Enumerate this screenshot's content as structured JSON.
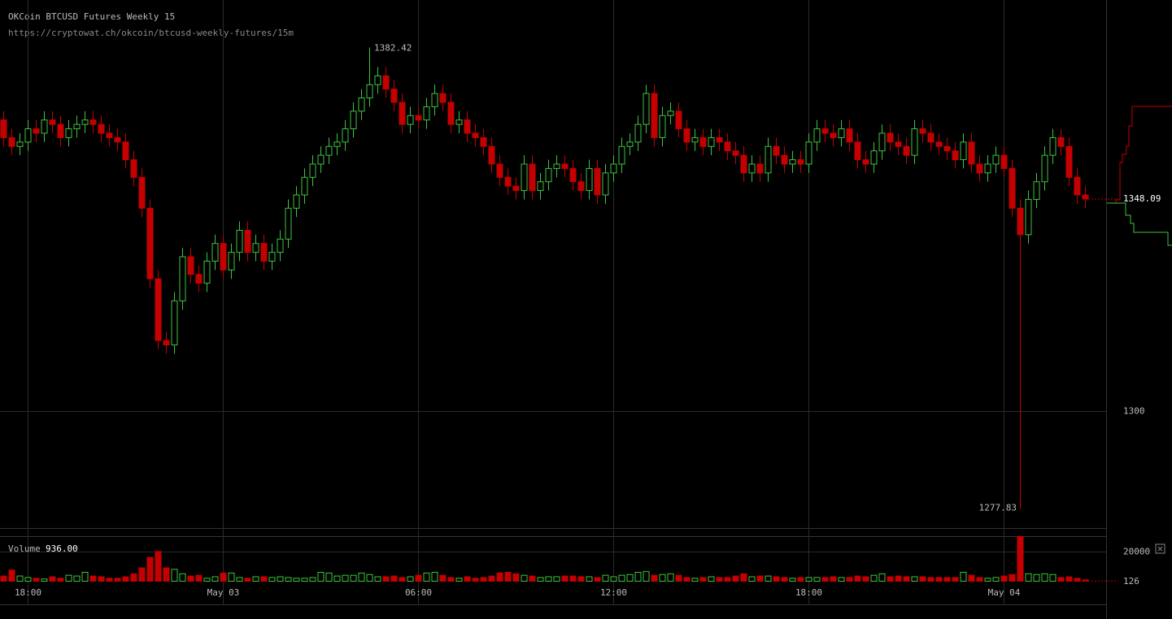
{
  "chart_data": {
    "type": "candlestick",
    "title": "OKCoin BTCUSD Futures Weekly 15",
    "subtitle": "https://cryptowat.ch/okcoin/btcusd-weekly-futures/15m",
    "up_color": "#3ec43e",
    "down_color": "#c40000",
    "open": [
      1366,
      1362,
      1360,
      1361,
      1364,
      1363,
      1366,
      1365,
      1362,
      1364,
      1365,
      1366,
      1365,
      1363,
      1362,
      1361,
      1357,
      1353,
      1346,
      1330,
      1316,
      1315,
      1325,
      1335,
      1331,
      1329,
      1334,
      1338,
      1332,
      1336,
      1341,
      1336,
      1338,
      1334,
      1336,
      1339,
      1346,
      1349,
      1353,
      1356,
      1358,
      1360,
      1361,
      1364,
      1368,
      1371,
      1374,
      1376,
      1373,
      1370,
      1365,
      1367,
      1366,
      1369,
      1372,
      1370,
      1365,
      1366,
      1363,
      1362,
      1360,
      1356,
      1353,
      1351,
      1350,
      1356,
      1350,
      1352,
      1355,
      1356,
      1355,
      1352,
      1350,
      1355,
      1349,
      1354,
      1356,
      1360,
      1361,
      1365,
      1372,
      1362,
      1367,
      1368,
      1364,
      1361,
      1362,
      1360,
      1362,
      1361,
      1359,
      1358,
      1354,
      1356,
      1354,
      1360,
      1358,
      1356,
      1357,
      1356,
      1361,
      1364,
      1363,
      1362,
      1364,
      1361,
      1357,
      1356,
      1359,
      1363,
      1361,
      1360,
      1358,
      1364,
      1363,
      1361,
      1360,
      1359,
      1357,
      1361,
      1356,
      1354,
      1356,
      1358,
      1355,
      1346,
      1340,
      1348,
      1352,
      1358,
      1362,
      1360,
      1353,
      1349
    ],
    "high": [
      1368,
      1364,
      1363,
      1366,
      1366,
      1368,
      1368,
      1367,
      1366,
      1367,
      1368,
      1368,
      1367,
      1365,
      1364,
      1363,
      1359,
      1355,
      1348,
      1332,
      1318,
      1327,
      1337,
      1337,
      1333,
      1336,
      1340,
      1340,
      1338,
      1343,
      1343,
      1340,
      1340,
      1338,
      1341,
      1348,
      1351,
      1355,
      1358,
      1360,
      1362,
      1363,
      1366,
      1370,
      1373,
      1382.42,
      1378,
      1378,
      1375,
      1372,
      1369,
      1369,
      1371,
      1374,
      1374,
      1372,
      1368,
      1368,
      1365,
      1364,
      1362,
      1358,
      1355,
      1353,
      1358,
      1358,
      1354,
      1357,
      1358,
      1358,
      1357,
      1354,
      1357,
      1357,
      1356,
      1358,
      1362,
      1363,
      1367,
      1374,
      1374,
      1369,
      1370,
      1370,
      1366,
      1364,
      1364,
      1364,
      1364,
      1363,
      1361,
      1360,
      1358,
      1358,
      1362,
      1362,
      1360,
      1359,
      1359,
      1363,
      1366,
      1366,
      1365,
      1366,
      1366,
      1363,
      1359,
      1361,
      1365,
      1365,
      1363,
      1362,
      1366,
      1366,
      1365,
      1363,
      1362,
      1361,
      1363,
      1363,
      1358,
      1358,
      1360,
      1360,
      1357,
      1348,
      1350,
      1354,
      1360,
      1364,
      1364,
      1362,
      1355,
      1351
    ],
    "low": [
      1360,
      1358,
      1358,
      1359,
      1361,
      1361,
      1363,
      1360,
      1360,
      1362,
      1363,
      1363,
      1361,
      1360,
      1359,
      1355,
      1351,
      1344,
      1328,
      1314,
      1313,
      1313,
      1323,
      1329,
      1327,
      1327,
      1332,
      1330,
      1330,
      1334,
      1334,
      1334,
      1332,
      1332,
      1334,
      1337,
      1344,
      1347,
      1351,
      1354,
      1356,
      1358,
      1359,
      1362,
      1366,
      1369,
      1372,
      1371,
      1368,
      1363,
      1363,
      1364,
      1364,
      1367,
      1368,
      1363,
      1363,
      1361,
      1360,
      1358,
      1354,
      1351,
      1349,
      1348,
      1348,
      1348,
      1348,
      1350,
      1353,
      1353,
      1350,
      1348,
      1348,
      1347,
      1347,
      1352,
      1354,
      1358,
      1359,
      1363,
      1360,
      1360,
      1365,
      1362,
      1359,
      1359,
      1358,
      1358,
      1359,
      1357,
      1356,
      1352,
      1352,
      1352,
      1352,
      1356,
      1354,
      1354,
      1354,
      1354,
      1359,
      1361,
      1360,
      1360,
      1359,
      1355,
      1354,
      1354,
      1357,
      1359,
      1358,
      1356,
      1356,
      1361,
      1359,
      1358,
      1357,
      1355,
      1355,
      1354,
      1352,
      1352,
      1354,
      1353,
      1344,
      1277.83,
      1338,
      1346,
      1350,
      1356,
      1358,
      1351,
      1347,
      1346
    ],
    "close": [
      1362,
      1360,
      1361,
      1364,
      1363,
      1366,
      1365,
      1362,
      1364,
      1365,
      1366,
      1365,
      1363,
      1362,
      1361,
      1357,
      1353,
      1346,
      1330,
      1316,
      1315,
      1325,
      1335,
      1331,
      1329,
      1334,
      1338,
      1332,
      1336,
      1341,
      1336,
      1338,
      1334,
      1336,
      1339,
      1346,
      1349,
      1353,
      1356,
      1358,
      1360,
      1361,
      1364,
      1368,
      1371,
      1374,
      1376,
      1373,
      1370,
      1365,
      1367,
      1366,
      1369,
      1372,
      1370,
      1365,
      1366,
      1363,
      1362,
      1360,
      1356,
      1353,
      1351,
      1350,
      1356,
      1350,
      1352,
      1355,
      1356,
      1355,
      1352,
      1350,
      1355,
      1349,
      1354,
      1356,
      1360,
      1361,
      1365,
      1372,
      1362,
      1367,
      1368,
      1364,
      1361,
      1362,
      1360,
      1362,
      1361,
      1359,
      1358,
      1354,
      1356,
      1354,
      1360,
      1358,
      1356,
      1357,
      1356,
      1361,
      1364,
      1363,
      1362,
      1364,
      1361,
      1357,
      1356,
      1359,
      1363,
      1361,
      1360,
      1358,
      1364,
      1363,
      1361,
      1360,
      1359,
      1357,
      1361,
      1356,
      1354,
      1356,
      1358,
      1355,
      1346,
      1340,
      1348,
      1352,
      1358,
      1362,
      1360,
      1353,
      1349,
      1348.09
    ],
    "volume": [
      3500,
      7500,
      3500,
      2500,
      2000,
      1500,
      3000,
      2000,
      4000,
      3500,
      6000,
      3500,
      3000,
      2000,
      2000,
      3000,
      5000,
      9000,
      16000,
      20000,
      9000,
      8000,
      5000,
      3500,
      4000,
      2000,
      3000,
      5500,
      5500,
      2500,
      2000,
      3000,
      3000,
      2500,
      3000,
      2500,
      2000,
      2000,
      2500,
      6000,
      5500,
      3500,
      4000,
      4000,
      5500,
      4500,
      3000,
      3000,
      3500,
      2500,
      3000,
      4000,
      5500,
      6000,
      4000,
      2500,
      2000,
      3000,
      2000,
      2500,
      3500,
      5500,
      6000,
      5000,
      4000,
      3500,
      2500,
      3000,
      3000,
      3500,
      3500,
      3000,
      3000,
      2500,
      4000,
      3000,
      4000,
      4500,
      6000,
      6500,
      4000,
      4500,
      5000,
      4000,
      2500,
      2000,
      2500,
      3000,
      2500,
      2500,
      3500,
      5000,
      3000,
      3500,
      3500,
      3000,
      2500,
      2000,
      2500,
      2500,
      2500,
      2500,
      3000,
      2500,
      2500,
      3500,
      3000,
      4000,
      5000,
      3000,
      3500,
      3000,
      3000,
      3000,
      2500,
      2500,
      2500,
      2500,
      6000,
      4000,
      2500,
      2000,
      2500,
      3500,
      4500,
      30000,
      5000,
      4500,
      5000,
      4500,
      2500,
      3000,
      2000,
      936
    ],
    "ylim": [
      1273.5,
      1393.2
    ],
    "yticks": [
      1300
    ],
    "xlim": [
      -0.4,
      135.6
    ],
    "xticks": [
      {
        "value": 3,
        "label": "18:00"
      },
      {
        "value": 27,
        "label": "May 03"
      },
      {
        "value": 51,
        "label": "06:00"
      },
      {
        "value": 75,
        "label": "12:00"
      },
      {
        "value": 99,
        "label": "18:00"
      },
      {
        "value": 123,
        "label": "May 04"
      }
    ],
    "volume_label": "Volume",
    "volume_readout": {
      "value": 936,
      "label": "936.00"
    },
    "vlim": [
      0,
      30000
    ],
    "vticks": [
      20000
    ],
    "volume_marker": 126,
    "grid": true
  }
}
